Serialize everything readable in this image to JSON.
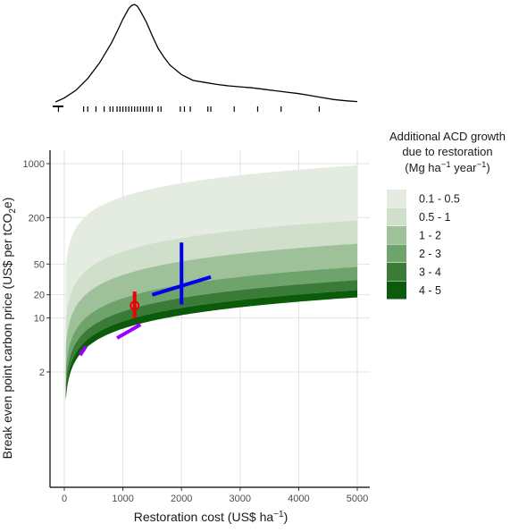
{
  "chart_data": [
    {
      "type": "density",
      "panel": "marginal-top",
      "x": [
        -150,
        0,
        200,
        400,
        600,
        800,
        900,
        1000,
        1100,
        1150,
        1200,
        1250,
        1300,
        1400,
        1500,
        1600,
        1700,
        1800,
        2000,
        2200,
        2400,
        2600,
        2800,
        3000,
        3200,
        3400,
        3600,
        3800,
        4000,
        4200,
        4400,
        4600,
        4800,
        5000
      ],
      "y": [
        0.0,
        0.04,
        0.12,
        0.24,
        0.4,
        0.6,
        0.72,
        0.85,
        0.96,
        0.99,
        1.0,
        0.98,
        0.93,
        0.82,
        0.68,
        0.55,
        0.46,
        0.38,
        0.28,
        0.22,
        0.2,
        0.18,
        0.165,
        0.155,
        0.145,
        0.13,
        0.115,
        0.1,
        0.085,
        0.065,
        0.045,
        0.025,
        0.012,
        0.004
      ],
      "rug": [
        -100,
        330,
        400,
        540,
        680,
        780,
        830,
        900,
        950,
        1000,
        1050,
        1100,
        1150,
        1200,
        1250,
        1300,
        1350,
        1400,
        1450,
        1500,
        1600,
        1650,
        1980,
        2050,
        2150,
        2450,
        2500,
        2900,
        3300,
        3700,
        4350
      ],
      "xlim": [
        -250,
        5250
      ]
    },
    {
      "type": "area",
      "panel": "main",
      "xlabel": "Restoration cost  (US$ ha",
      "xlabel_sup": "−1",
      "xlabel_end": ")",
      "ylabel": "Break even point carbon price  (US$ per tCO",
      "ylabel_sub": "2",
      "ylabel_end": "e)",
      "xlim": [
        -250,
        5250
      ],
      "ylim": [
        0.1,
        1600
      ],
      "yscale": "log",
      "xticks": [
        0,
        1000,
        2000,
        3000,
        4000,
        5000
      ],
      "xtick_labels": [
        "0",
        "1000",
        "2000",
        "3000",
        "4000",
        "5000"
      ],
      "yticks": [
        2,
        10,
        20,
        50,
        200,
        1000
      ],
      "ytick_labels": [
        "2",
        "10",
        "20",
        "50",
        "200",
        "1000"
      ],
      "grid": true,
      "curve_x_start": 25,
      "curve_x_end": 5000,
      "bands": [
        {
          "range": "0.1 - 0.5",
          "upper_at_5000": 950,
          "lower_at_5000": 185,
          "color": "#e4ebe1"
        },
        {
          "range": "0.5 - 1",
          "upper_at_5000": 185,
          "lower_at_5000": 92,
          "color": "#d0dfcb"
        },
        {
          "range": "1 - 2",
          "upper_at_5000": 92,
          "lower_at_5000": 46,
          "color": "#9ec19a"
        },
        {
          "range": "2 - 3",
          "upper_at_5000": 46,
          "lower_at_5000": 31,
          "color": "#6ea36b"
        },
        {
          "range": "3 - 4",
          "upper_at_5000": 31,
          "lower_at_5000": 23,
          "color": "#3a7b37"
        },
        {
          "range": "4 - 5",
          "upper_at_5000": 23,
          "lower_at_5000": 18.5,
          "color": "#0b5b0b"
        }
      ],
      "markers": [
        {
          "series": "blue",
          "color": "#0000ee",
          "segments": [
            [
              [
                1500,
                20
              ],
              [
                2500,
                34
              ]
            ],
            [
              [
                2000,
                15
              ],
              [
                2000,
                95
              ]
            ]
          ]
        },
        {
          "series": "red",
          "color": "#ee0000",
          "segments": [
            [
              [
                1200,
                10
              ],
              [
                1200,
                22
              ]
            ]
          ],
          "point": [
            1200,
            14.5
          ]
        },
        {
          "series": "purple-a",
          "color": "#9a00ff",
          "segments": [
            [
              [
                900,
                5.5
              ],
              [
                1300,
                8.2
              ]
            ]
          ]
        },
        {
          "series": "purple-b",
          "color": "#9a00ff",
          "segments": [
            [
              [
                270,
                3.3
              ],
              [
                370,
                4.3
              ]
            ]
          ]
        }
      ]
    }
  ],
  "legend": {
    "title_lines": [
      "Additional ACD growth",
      "due to restoration"
    ],
    "title_unit": "(Mg ha",
    "title_unit_sup1": "−1",
    "title_unit_mid": " year",
    "title_unit_sup2": "−1",
    "title_unit_end": ")",
    "placement": "right",
    "items": [
      {
        "label": "0.1 - 0.5",
        "color": "#e4ebe1"
      },
      {
        "label": "0.5 - 1",
        "color": "#d0dfcb"
      },
      {
        "label": "1 - 2",
        "color": "#9ec19a"
      },
      {
        "label": "2 - 3",
        "color": "#6ea36b"
      },
      {
        "label": "3 - 4",
        "color": "#3a7b37"
      },
      {
        "label": "4 - 5",
        "color": "#0b5b0b"
      }
    ]
  }
}
